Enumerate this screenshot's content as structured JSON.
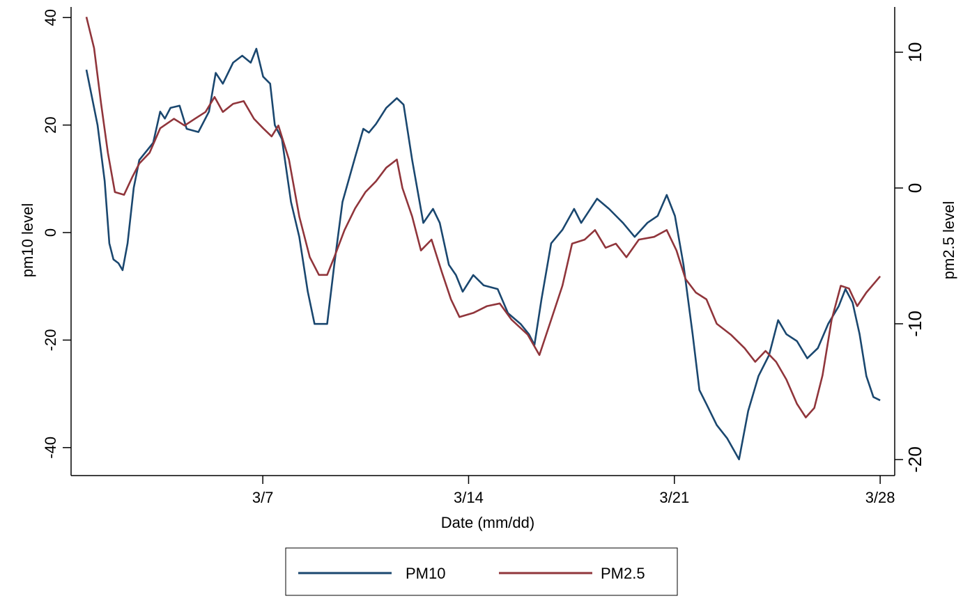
{
  "chart_data": {
    "type": "line",
    "title": "",
    "xlabel": "Date (mm/dd)",
    "ylabel": "pm10 level",
    "y2label": "pm2.5 level",
    "x_unit": "days since 3/1",
    "x_ticks": [
      {
        "x": 6,
        "label": "3/7"
      },
      {
        "x": 13,
        "label": "3/14"
      },
      {
        "x": 20,
        "label": "3/21"
      },
      {
        "x": 27,
        "label": "3/28"
      }
    ],
    "y_ticks": [
      40,
      20,
      0,
      -20,
      -40
    ],
    "y2_ticks": [
      10,
      0,
      -10,
      -20
    ],
    "legend": {
      "position": "bottom",
      "entries": [
        "PM10",
        "PM2.5"
      ]
    },
    "grid": false,
    "series": [
      {
        "name": "PM10",
        "axis": "left",
        "color": "#1a476f",
        "x": [
          0,
          0.38,
          0.62,
          0.78,
          0.92,
          1.09,
          1.23,
          1.4,
          1.61,
          1.8,
          2.08,
          2.27,
          2.51,
          2.67,
          2.86,
          3.17,
          3.41,
          3.81,
          4.17,
          4.4,
          4.64,
          4.99,
          5.3,
          5.59,
          5.78,
          6.01,
          6.25,
          6.41,
          6.65,
          6.96,
          7.24,
          7.53,
          7.76,
          8.19,
          8.43,
          8.71,
          9.14,
          9.42,
          9.61,
          9.85,
          10.2,
          10.56,
          10.79,
          11.08,
          11.46,
          11.79,
          12.02,
          12.33,
          12.57,
          12.8,
          13.16,
          13.51,
          13.99,
          14.34,
          14.77,
          15.05,
          15.24,
          15.48,
          15.81,
          16.19,
          16.59,
          16.83,
          17.37,
          17.78,
          18.25,
          18.65,
          19.08,
          19.43,
          19.74,
          20.02,
          20.31,
          20.62,
          20.85,
          21.09,
          21.44,
          21.8,
          22.2,
          22.51,
          22.86,
          23.22,
          23.53,
          23.81,
          24.17,
          24.52,
          24.88,
          25.23,
          25.59,
          25.82,
          26.06,
          26.3,
          26.53,
          26.77,
          27
        ],
        "y": [
          30.3,
          20,
          9.6,
          -2,
          -5,
          -5.7,
          -7,
          -2,
          8.3,
          13.5,
          15.4,
          16.7,
          22.5,
          21.2,
          23.2,
          23.6,
          19.3,
          18.7,
          22.5,
          29.7,
          27.7,
          31.6,
          32.9,
          31.6,
          34.2,
          29,
          27.7,
          20,
          17.4,
          5.7,
          -0.8,
          -11,
          -17,
          -17,
          -6,
          5.7,
          14,
          19.3,
          18.6,
          20.2,
          23.2,
          25,
          23.8,
          13.5,
          1.8,
          4.4,
          1.8,
          -6,
          -7.9,
          -11,
          -7.9,
          -9.8,
          -10.5,
          -15,
          -17,
          -18.9,
          -20.9,
          -12.4,
          -2,
          0.5,
          4.4,
          1.8,
          6.3,
          4.4,
          1.8,
          -0.8,
          1.8,
          3.1,
          7,
          3.1,
          -6,
          -18.9,
          -29.3,
          -31.9,
          -35.8,
          -38.3,
          -42.2,
          -33.2,
          -26.7,
          -22.8,
          -16.3,
          -18.9,
          -20.2,
          -23.4,
          -21.5,
          -17,
          -13.7,
          -10.5,
          -13,
          -18.9,
          -26.7,
          -30.6,
          -31.2
        ]
      },
      {
        "name": "PM2.5",
        "axis": "right",
        "color": "#90353b",
        "x": [
          0,
          0.26,
          0.5,
          0.73,
          0.97,
          1.28,
          1.56,
          1.8,
          2.15,
          2.51,
          2.98,
          3.34,
          3.69,
          4.05,
          4.36,
          4.64,
          4.99,
          5.35,
          5.7,
          6.01,
          6.3,
          6.53,
          6.89,
          7.24,
          7.6,
          7.91,
          8.19,
          8.43,
          8.78,
          9.14,
          9.49,
          9.85,
          10.2,
          10.56,
          10.75,
          11.08,
          11.38,
          11.74,
          12.09,
          12.4,
          12.69,
          13.16,
          13.63,
          14.06,
          14.46,
          15.01,
          15.41,
          15.81,
          16.19,
          16.52,
          16.95,
          17.3,
          17.66,
          18.01,
          18.37,
          18.79,
          19.31,
          19.74,
          20.07,
          20.38,
          20.73,
          21.09,
          21.44,
          21.92,
          22.39,
          22.75,
          23.1,
          23.46,
          23.81,
          24.17,
          24.47,
          24.76,
          25.04,
          25.35,
          25.66,
          25.94,
          26.22,
          26.53,
          27
        ],
        "y": [
          12.6,
          10.3,
          6.2,
          2.6,
          -0.3,
          -0.5,
          0.8,
          1.8,
          2.6,
          4.4,
          5.1,
          4.6,
          5.1,
          5.6,
          6.7,
          5.6,
          6.2,
          6.4,
          5.1,
          4.4,
          3.8,
          4.6,
          2.1,
          -2.1,
          -5.1,
          -6.4,
          -6.4,
          -5.1,
          -3.1,
          -1.5,
          -0.3,
          0.5,
          1.5,
          2.1,
          0,
          -2.1,
          -4.6,
          -3.8,
          -6.2,
          -8.2,
          -9.5,
          -9.2,
          -8.7,
          -8.5,
          -9.7,
          -10.8,
          -12.3,
          -9.7,
          -7.2,
          -4.1,
          -3.8,
          -3.1,
          -4.4,
          -4.1,
          -5.1,
          -3.8,
          -3.6,
          -3.1,
          -4.6,
          -6.7,
          -7.7,
          -8.2,
          -10,
          -10.8,
          -11.8,
          -12.8,
          -12,
          -12.8,
          -14.1,
          -15.9,
          -16.9,
          -16.2,
          -13.8,
          -9.7,
          -7.2,
          -7.4,
          -8.7,
          -7.7,
          -6.5
        ]
      }
    ]
  }
}
